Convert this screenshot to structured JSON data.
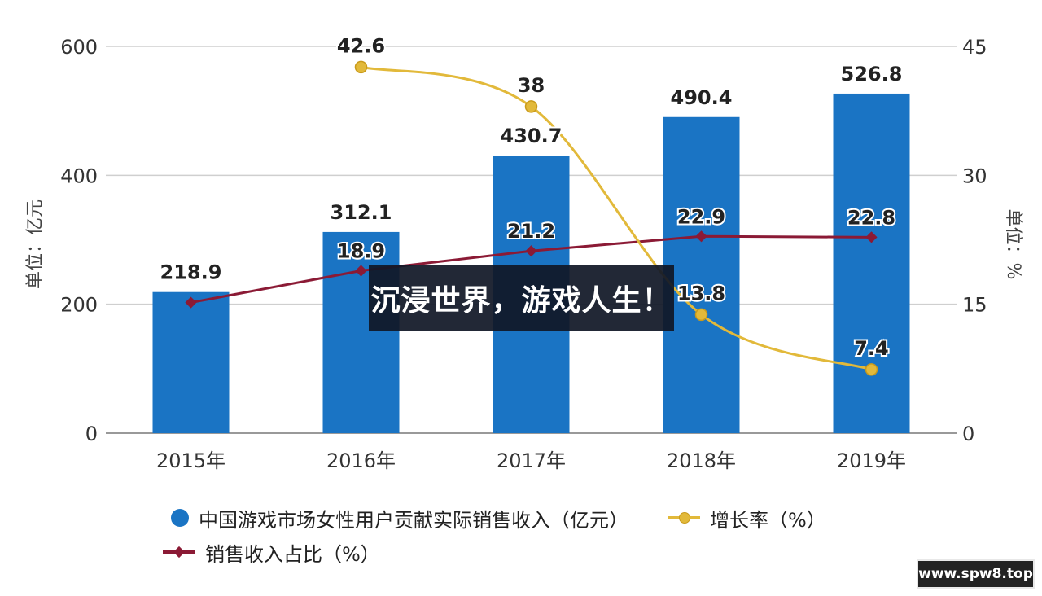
{
  "overlay_text": "沉浸世界，游戏人生！",
  "badge_text": "www.spw8.top",
  "colors": {
    "bar": "#1a74c4",
    "growth": "#e2b93a",
    "share": "#8b1a35"
  },
  "chart_data": {
    "type": "bar",
    "categories": [
      "2015年",
      "2016年",
      "2017年",
      "2018年",
      "2019年"
    ],
    "ylabel_left": "单位：亿元",
    "ylabel_right": "单位：%",
    "ylim_left": [
      0,
      600
    ],
    "ylim_right": [
      0,
      45
    ],
    "yticks_left": [
      "0",
      "200",
      "400",
      "600"
    ],
    "yticks_right": [
      "0",
      "15",
      "30",
      "45"
    ],
    "grid": true,
    "legend_position": "bottom",
    "series": [
      {
        "name": "中国游戏市场女性用户贡献实际销售收入（亿元）",
        "type": "bar",
        "axis": "left",
        "values": [
          218.9,
          312.1,
          430.7,
          490.4,
          526.8
        ],
        "labels": [
          "218.9",
          "312.1",
          "430.7",
          "490.4",
          "526.8"
        ]
      },
      {
        "name": "增长率（%）",
        "type": "line",
        "axis": "right",
        "values": [
          null,
          42.6,
          38,
          13.8,
          7.4
        ],
        "labels": [
          "",
          "42.6",
          "38",
          "13.8",
          "7.4"
        ]
      },
      {
        "name": "销售收入占比（%）",
        "type": "line",
        "axis": "right",
        "values": [
          15.2,
          18.9,
          21.2,
          22.9,
          22.8
        ],
        "labels": [
          "",
          "18.9",
          "21.2",
          "22.9",
          "22.8"
        ]
      }
    ]
  }
}
